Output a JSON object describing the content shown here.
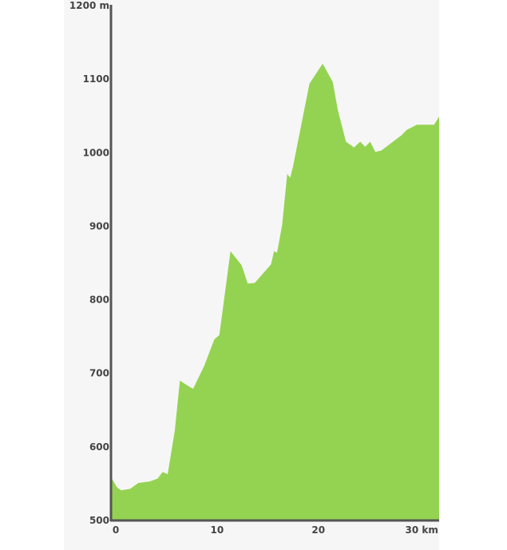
{
  "chart_data": {
    "type": "area",
    "title": "",
    "xlabel": "",
    "ylabel": "",
    "xlim": [
      0,
      32.4
    ],
    "ylim": [
      500,
      1200
    ],
    "x_unit": "km",
    "y_unit": "m",
    "grid": false,
    "fill_color": "#94d351",
    "axis_color": "#555555",
    "y_ticks": [
      {
        "value": 500,
        "label": "500"
      },
      {
        "value": 600,
        "label": "600"
      },
      {
        "value": 700,
        "label": "700"
      },
      {
        "value": 800,
        "label": "800"
      },
      {
        "value": 900,
        "label": "900"
      },
      {
        "value": 1000,
        "label": "1000"
      },
      {
        "value": 1100,
        "label": "1100"
      },
      {
        "value": 1200,
        "label": "1200 m"
      }
    ],
    "x_ticks": [
      {
        "value": 0,
        "label": "0"
      },
      {
        "value": 10,
        "label": "10"
      },
      {
        "value": 20,
        "label": "20"
      },
      {
        "value": 30,
        "label": "30 km"
      }
    ],
    "series": [
      {
        "x": [
          0,
          0.6,
          1.0,
          1.9,
          2.7,
          3.8,
          4.6,
          5.1,
          5.6,
          6.3,
          6.8,
          7.5,
          8.1,
          9.2,
          10.2,
          10.7,
          11.8,
          12.9,
          13.5,
          14.2,
          15.8,
          16.1,
          16.4,
          16.9,
          17.4,
          17.7,
          18.0,
          19.6,
          20.9,
          21.9,
          22.4,
          23.2,
          24.0,
          24.6,
          25.1,
          25.6,
          26.1,
          26.7,
          28.7,
          29.2,
          30.2,
          31.9,
          32.4
        ],
        "values": [
          559,
          545,
          541,
          543,
          551,
          553,
          557,
          566,
          563,
          622,
          690,
          684,
          679,
          710,
          746,
          752,
          866,
          847,
          822,
          823,
          848,
          866,
          864,
          902,
          971,
          966,
          983,
          1094,
          1121,
          1096,
          1058,
          1015,
          1007,
          1015,
          1008,
          1015,
          1001,
          1003,
          1024,
          1031,
          1038,
          1038,
          1049
        ]
      }
    ]
  }
}
